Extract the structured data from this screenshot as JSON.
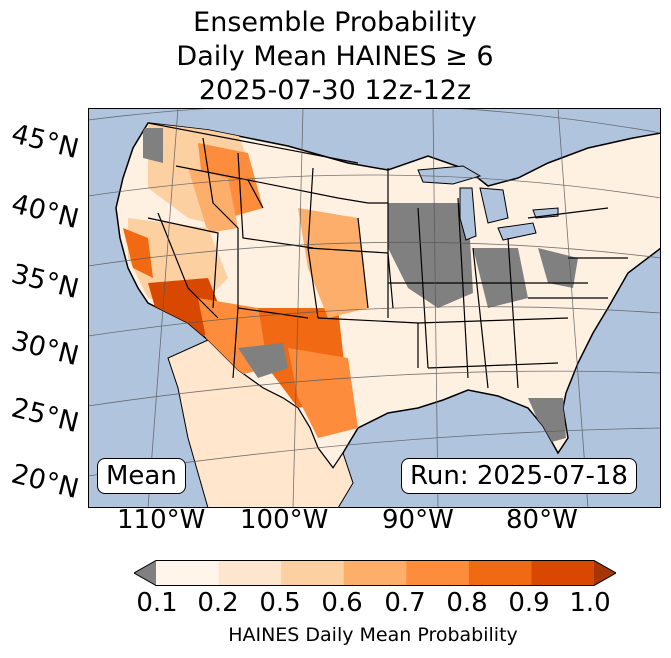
{
  "title": {
    "line1": "Ensemble Probability",
    "line2": "Daily Mean HAINES ≥ 6",
    "line3": "2025-07-30 12z-12z"
  },
  "map": {
    "latitude_labels": [
      "45°N",
      "40°N",
      "35°N",
      "30°N",
      "25°N",
      "20°N"
    ],
    "longitude_labels": [
      "110°W",
      "100°W",
      "90°W",
      "80°W"
    ],
    "mean_label": "Mean",
    "run_label": "Run: 2025-07-18",
    "colors": {
      "ocean": "#b0c4de",
      "no_data": "#808080",
      "land_low": "#ffffff"
    }
  },
  "colorbar": {
    "ticks": [
      "0.1",
      "0.2",
      "0.5",
      "0.6",
      "0.7",
      "0.8",
      "0.9",
      "1.0"
    ],
    "label": "HAINES Daily Mean Probability",
    "colors": [
      "#fff5eb",
      "#fee6ce",
      "#fdd0a2",
      "#fdae6b",
      "#fd8d3c",
      "#f16913",
      "#d94801"
    ],
    "under_color": "#808080",
    "over_color": "#a63603"
  }
}
